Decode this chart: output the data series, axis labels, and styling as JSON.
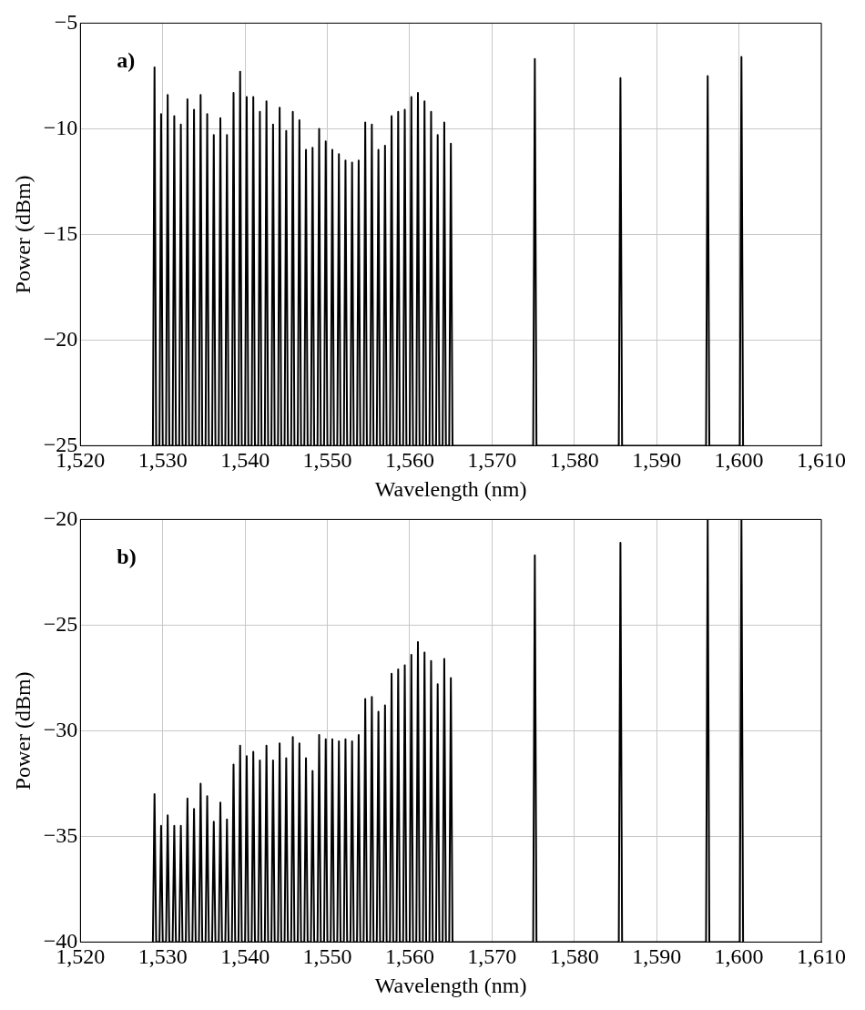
{
  "chart_data": [
    {
      "type": "line",
      "annotations": [
        "a)"
      ],
      "xlabel": "Wavelength (nm)",
      "ylabel": "Power (dBm)",
      "grid": true,
      "legend": false,
      "marker": "none",
      "line_style": "solid",
      "xlim": [
        1520,
        1610
      ],
      "xticks": [
        {
          "value": 1520,
          "label": "1,520"
        },
        {
          "value": 1530,
          "label": "1,530"
        },
        {
          "value": 1540,
          "label": "1,540"
        },
        {
          "value": 1550,
          "label": "1,550"
        },
        {
          "value": 1560,
          "label": "1,560"
        },
        {
          "value": 1570,
          "label": "1,570"
        },
        {
          "value": 1580,
          "label": "1,580"
        },
        {
          "value": 1590,
          "label": "1,590"
        },
        {
          "value": 1600,
          "label": "1,600"
        },
        {
          "value": 1610,
          "label": "1,610"
        }
      ],
      "ylim": [
        -25,
        -5
      ],
      "yticks": [
        {
          "value": -25,
          "label": "−25"
        },
        {
          "value": -20,
          "label": "−20"
        },
        {
          "value": -15,
          "label": "−15"
        },
        {
          "value": -10,
          "label": "−10"
        },
        {
          "value": -5,
          "label": "−5"
        }
      ],
      "x": [
        1528.8,
        1529.0,
        1529.2,
        1529.6,
        1529.8,
        1530.0,
        1530.4,
        1530.6,
        1530.8,
        1531.2,
        1531.4,
        1531.6,
        1532.0,
        1532.2,
        1532.4,
        1532.8,
        1533.0,
        1533.2,
        1533.6,
        1533.8,
        1534.0,
        1534.4,
        1534.6,
        1534.8,
        1535.2,
        1535.4,
        1535.6,
        1536.0,
        1536.2,
        1536.4,
        1536.8,
        1537.0,
        1537.2,
        1537.6,
        1537.8,
        1538.0,
        1538.4,
        1538.6,
        1538.8,
        1539.2,
        1539.4,
        1539.6,
        1540.0,
        1540.2,
        1540.4,
        1540.8,
        1541.0,
        1541.2,
        1541.6,
        1541.8,
        1542.0,
        1542.4,
        1542.6,
        1542.8,
        1543.2,
        1543.4,
        1543.6,
        1544.0,
        1544.2,
        1544.4,
        1544.8,
        1545.0,
        1545.2,
        1545.6,
        1545.8,
        1546.0,
        1546.4,
        1546.6,
        1546.8,
        1547.2,
        1547.4,
        1547.6,
        1548.0,
        1548.2,
        1548.4,
        1548.8,
        1549.0,
        1549.2,
        1549.6,
        1549.8,
        1550.0,
        1550.4,
        1550.6,
        1550.8,
        1551.2,
        1551.4,
        1551.6,
        1552.0,
        1552.2,
        1552.4,
        1552.8,
        1553.0,
        1553.2,
        1553.6,
        1553.8,
        1554.0,
        1554.4,
        1554.6,
        1554.8,
        1555.2,
        1555.4,
        1555.6,
        1556.0,
        1556.2,
        1556.4,
        1556.8,
        1557.0,
        1557.2,
        1557.6,
        1557.8,
        1558.0,
        1558.4,
        1558.6,
        1558.8,
        1559.2,
        1559.4,
        1559.6,
        1560.0,
        1560.2,
        1560.4,
        1560.8,
        1561.0,
        1561.2,
        1561.6,
        1561.8,
        1562.0,
        1562.4,
        1562.6,
        1562.8,
        1563.2,
        1563.4,
        1563.6,
        1564.0,
        1564.2,
        1564.4,
        1564.8,
        1565.0,
        1565.2,
        1575.0,
        1575.2,
        1575.4,
        1585.4,
        1585.6,
        1585.8,
        1596.0,
        1596.2,
        1596.4,
        1600.1,
        1600.3,
        1600.5
      ],
      "series": [
        {
          "color": "#000000",
          "values": [
            -25,
            -7.1,
            -25,
            -25,
            -9.3,
            -25,
            -25,
            -8.4,
            -25,
            -25,
            -9.4,
            -25,
            -25,
            -9.8,
            -25,
            -25,
            -8.6,
            -25,
            -25,
            -9.1,
            -25,
            -25,
            -8.4,
            -25,
            -25,
            -9.3,
            -25,
            -25,
            -10.3,
            -25,
            -25,
            -9.5,
            -25,
            -25,
            -10.3,
            -25,
            -25,
            -8.3,
            -25,
            -25,
            -7.3,
            -25,
            -25,
            -8.5,
            -25,
            -25,
            -8.5,
            -25,
            -25,
            -9.2,
            -25,
            -25,
            -8.7,
            -25,
            -25,
            -9.8,
            -25,
            -25,
            -9.0,
            -25,
            -25,
            -10.1,
            -25,
            -25,
            -9.2,
            -25,
            -25,
            -9.6,
            -25,
            -25,
            -11.0,
            -25,
            -25,
            -10.9,
            -25,
            -25,
            -10.0,
            -25,
            -25,
            -10.6,
            -25,
            -25,
            -11.0,
            -25,
            -25,
            -11.2,
            -25,
            -25,
            -11.5,
            -25,
            -25,
            -11.6,
            -25,
            -25,
            -11.5,
            -25,
            -25,
            -9.7,
            -25,
            -25,
            -9.8,
            -25,
            -25,
            -11.0,
            -25,
            -25,
            -10.8,
            -25,
            -25,
            -9.4,
            -25,
            -25,
            -9.2,
            -25,
            -25,
            -9.1,
            -25,
            -25,
            -8.5,
            -25,
            -25,
            -8.3,
            -25,
            -25,
            -8.7,
            -25,
            -25,
            -9.2,
            -25,
            -25,
            -10.3,
            -25,
            -25,
            -9.7,
            -25,
            -25,
            -10.7,
            -25,
            -25,
            -6.7,
            -25,
            -25,
            -7.6,
            -25,
            -25,
            -7.5,
            -25,
            -25,
            -6.6,
            -25
          ]
        }
      ]
    },
    {
      "type": "line",
      "annotations": [
        "b)"
      ],
      "xlabel": "Wavelength (nm)",
      "ylabel": "Power (dBm)",
      "grid": true,
      "legend": false,
      "marker": "none",
      "line_style": "solid",
      "xlim": [
        1520,
        1610
      ],
      "xticks": [
        {
          "value": 1520,
          "label": "1,520"
        },
        {
          "value": 1530,
          "label": "1,530"
        },
        {
          "value": 1540,
          "label": "1,540"
        },
        {
          "value": 1550,
          "label": "1,550"
        },
        {
          "value": 1560,
          "label": "1,560"
        },
        {
          "value": 1570,
          "label": "1,570"
        },
        {
          "value": 1580,
          "label": "1,580"
        },
        {
          "value": 1590,
          "label": "1,590"
        },
        {
          "value": 1600,
          "label": "1,600"
        },
        {
          "value": 1610,
          "label": "1,610"
        }
      ],
      "ylim": [
        -40,
        -20
      ],
      "yticks": [
        {
          "value": -40,
          "label": "−40"
        },
        {
          "value": -35,
          "label": "−35"
        },
        {
          "value": -30,
          "label": "−30"
        },
        {
          "value": -25,
          "label": "−25"
        },
        {
          "value": -20,
          "label": "−20"
        }
      ],
      "x": [
        1528.8,
        1529.0,
        1529.2,
        1529.6,
        1529.8,
        1530.0,
        1530.4,
        1530.6,
        1530.8,
        1531.2,
        1531.4,
        1531.6,
        1532.0,
        1532.2,
        1532.4,
        1532.8,
        1533.0,
        1533.2,
        1533.6,
        1533.8,
        1534.0,
        1534.4,
        1534.6,
        1534.8,
        1535.2,
        1535.4,
        1535.6,
        1536.0,
        1536.2,
        1536.4,
        1536.8,
        1537.0,
        1537.2,
        1537.6,
        1537.8,
        1538.0,
        1538.4,
        1538.6,
        1538.8,
        1539.2,
        1539.4,
        1539.6,
        1540.0,
        1540.2,
        1540.4,
        1540.8,
        1541.0,
        1541.2,
        1541.6,
        1541.8,
        1542.0,
        1542.4,
        1542.6,
        1542.8,
        1543.2,
        1543.4,
        1543.6,
        1544.0,
        1544.2,
        1544.4,
        1544.8,
        1545.0,
        1545.2,
        1545.6,
        1545.8,
        1546.0,
        1546.4,
        1546.6,
        1546.8,
        1547.2,
        1547.4,
        1547.6,
        1548.0,
        1548.2,
        1548.4,
        1548.8,
        1549.0,
        1549.2,
        1549.6,
        1549.8,
        1550.0,
        1550.4,
        1550.6,
        1550.8,
        1551.2,
        1551.4,
        1551.6,
        1552.0,
        1552.2,
        1552.4,
        1552.8,
        1553.0,
        1553.2,
        1553.6,
        1553.8,
        1554.0,
        1554.4,
        1554.6,
        1554.8,
        1555.2,
        1555.4,
        1555.6,
        1556.0,
        1556.2,
        1556.4,
        1556.8,
        1557.0,
        1557.2,
        1557.6,
        1557.8,
        1558.0,
        1558.4,
        1558.6,
        1558.8,
        1559.2,
        1559.4,
        1559.6,
        1560.0,
        1560.2,
        1560.4,
        1560.8,
        1561.0,
        1561.2,
        1561.6,
        1561.8,
        1562.0,
        1562.4,
        1562.6,
        1562.8,
        1563.2,
        1563.4,
        1563.6,
        1564.0,
        1564.2,
        1564.4,
        1564.8,
        1565.0,
        1565.2,
        1575.0,
        1575.2,
        1575.4,
        1585.4,
        1585.6,
        1585.8,
        1596.0,
        1596.2,
        1596.4,
        1600.1,
        1600.3,
        1600.5
      ],
      "series": [
        {
          "color": "#000000",
          "values": [
            -40,
            -33.0,
            -40,
            -40,
            -34.5,
            -40,
            -40,
            -34.0,
            -40,
            -40,
            -34.5,
            -40,
            -40,
            -34.5,
            -40,
            -40,
            -33.2,
            -40,
            -40,
            -33.7,
            -40,
            -40,
            -32.5,
            -40,
            -40,
            -33.1,
            -40,
            -40,
            -34.3,
            -40,
            -40,
            -33.4,
            -40,
            -40,
            -34.2,
            -40,
            -40,
            -31.6,
            -40,
            -40,
            -30.7,
            -40,
            -40,
            -31.2,
            -40,
            -40,
            -31.0,
            -40,
            -40,
            -31.4,
            -40,
            -40,
            -30.7,
            -40,
            -40,
            -31.4,
            -40,
            -40,
            -30.6,
            -40,
            -40,
            -31.3,
            -40,
            -40,
            -30.3,
            -40,
            -40,
            -30.6,
            -40,
            -40,
            -31.3,
            -40,
            -40,
            -31.9,
            -40,
            -40,
            -30.2,
            -40,
            -40,
            -30.4,
            -40,
            -40,
            -30.4,
            -40,
            -40,
            -30.5,
            -40,
            -40,
            -30.4,
            -40,
            -40,
            -30.5,
            -40,
            -40,
            -30.2,
            -40,
            -40,
            -28.5,
            -40,
            -40,
            -28.4,
            -40,
            -40,
            -29.1,
            -40,
            -40,
            -28.8,
            -40,
            -40,
            -27.3,
            -40,
            -40,
            -27.1,
            -40,
            -40,
            -26.9,
            -40,
            -40,
            -26.4,
            -40,
            -40,
            -25.8,
            -40,
            -40,
            -26.3,
            -40,
            -40,
            -26.7,
            -40,
            -40,
            -27.8,
            -40,
            -40,
            -26.6,
            -40,
            -40,
            -27.5,
            -40,
            -40,
            -21.7,
            -40,
            -40,
            -21.1,
            -40,
            -40,
            -20,
            -40,
            -40,
            -20,
            -40
          ]
        }
      ]
    }
  ]
}
